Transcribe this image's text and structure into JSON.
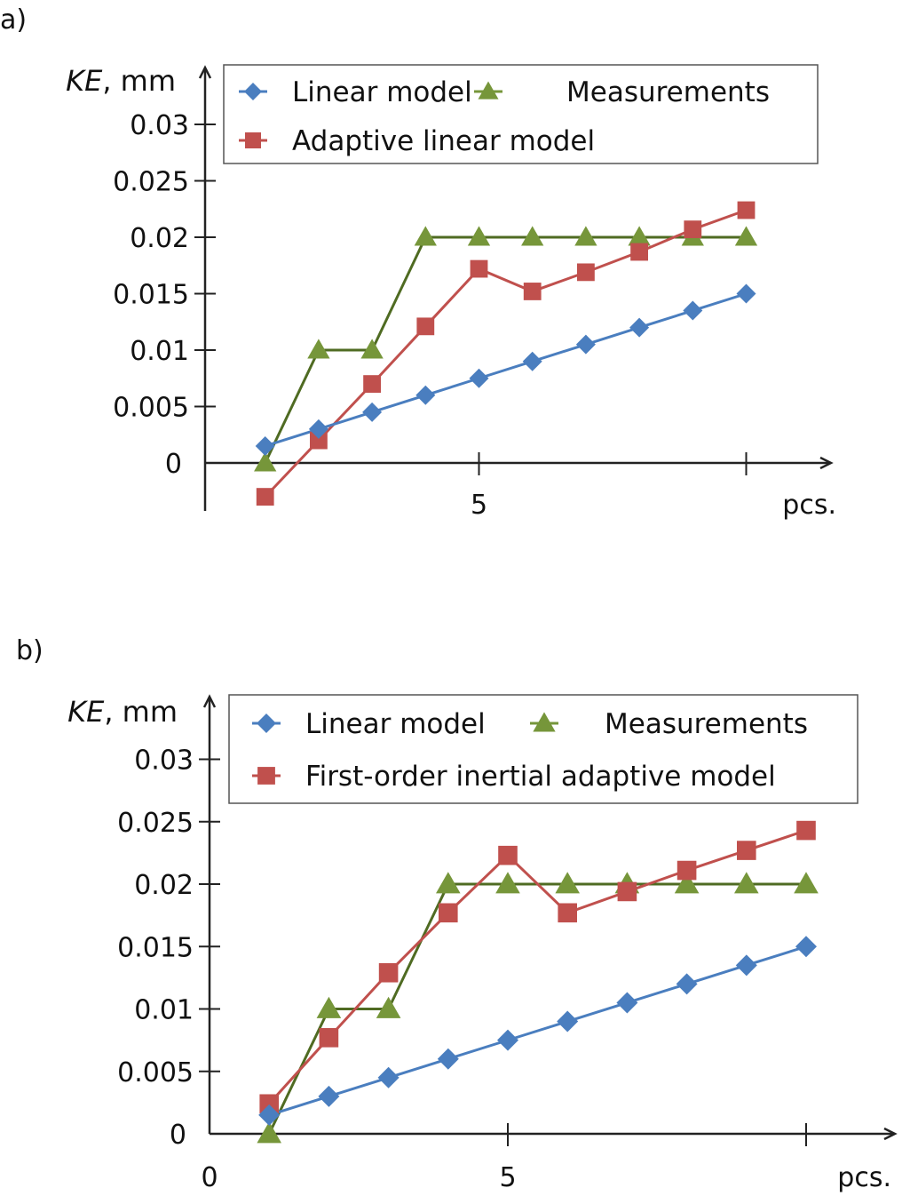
{
  "chart_data": [
    {
      "panel_label": "a)",
      "type": "line",
      "title": "",
      "xlabel": "pcs.",
      "ylabel_italic": "KE",
      "ylabel_unit": ", mm",
      "xlim": [
        0,
        11
      ],
      "ylim": [
        -0.005,
        0.033
      ],
      "x_ticks": [
        {
          "value": 5,
          "label": "5"
        },
        {
          "value": 10,
          "label": ""
        }
      ],
      "y_ticks": [
        {
          "value": 0,
          "label": "0"
        },
        {
          "value": 0.005,
          "label": "0.005"
        },
        {
          "value": 0.01,
          "label": "0.01"
        },
        {
          "value": 0.015,
          "label": "0.015"
        },
        {
          "value": 0.02,
          "label": "0.02"
        },
        {
          "value": 0.025,
          "label": "0.025"
        },
        {
          "value": 0.03,
          "label": "0.03"
        }
      ],
      "grid": false,
      "legend_position": "top",
      "x": [
        1,
        2,
        3,
        4,
        5,
        6,
        7,
        8,
        9,
        10
      ],
      "series": [
        {
          "name": "Linear model",
          "marker": "diamond",
          "color": "#4a7ebf",
          "line_color": "#4a7ebf",
          "values": [
            0.0015,
            0.003,
            0.0045,
            0.006,
            0.0075,
            0.009,
            0.0105,
            0.012,
            0.0135,
            0.015
          ]
        },
        {
          "name": "Measurements",
          "marker": "triangle",
          "color": "#76963a",
          "line_color": "#4f6b22",
          "values": [
            0,
            0.01,
            0.01,
            0.02,
            0.02,
            0.02,
            0.02,
            0.02,
            0.02,
            0.02
          ]
        },
        {
          "name": "Adaptive linear model",
          "marker": "square",
          "color": "#c0504d",
          "line_color": "#c0504d",
          "values": [
            -0.003,
            0.002,
            0.007,
            0.0121,
            0.0172,
            0.0152,
            0.0169,
            0.0187,
            0.0207,
            0.0224
          ]
        }
      ],
      "legend_order": [
        [
          0,
          1
        ],
        [
          2
        ]
      ]
    },
    {
      "panel_label": "b)",
      "type": "line",
      "title": "",
      "xlabel": "pcs.",
      "ylabel_italic": "KE",
      "ylabel_unit": ", mm",
      "xlim": [
        0,
        11
      ],
      "ylim": [
        0,
        0.033
      ],
      "x_ticks": [
        {
          "value": 0,
          "label": "0"
        },
        {
          "value": 5,
          "label": "5"
        },
        {
          "value": 10,
          "label": ""
        }
      ],
      "y_ticks": [
        {
          "value": 0,
          "label": "0"
        },
        {
          "value": 0.005,
          "label": "0.005"
        },
        {
          "value": 0.01,
          "label": "0.01"
        },
        {
          "value": 0.015,
          "label": "0.015"
        },
        {
          "value": 0.02,
          "label": "0.02"
        },
        {
          "value": 0.025,
          "label": "0.025"
        },
        {
          "value": 0.03,
          "label": "0.03"
        }
      ],
      "grid": false,
      "legend_position": "top",
      "x": [
        1,
        2,
        3,
        4,
        5,
        6,
        7,
        8,
        9,
        10
      ],
      "series": [
        {
          "name": "Linear model",
          "marker": "diamond",
          "color": "#4a7ebf",
          "line_color": "#4a7ebf",
          "values": [
            0.0015,
            0.003,
            0.0045,
            0.006,
            0.0075,
            0.009,
            0.0105,
            0.012,
            0.0135,
            0.015
          ]
        },
        {
          "name": "Measurements",
          "marker": "triangle",
          "color": "#76963a",
          "line_color": "#4f6b22",
          "values": [
            0,
            0.01,
            0.01,
            0.02,
            0.02,
            0.02,
            0.02,
            0.02,
            0.02,
            0.02
          ]
        },
        {
          "name": "First-order inertial adaptive model",
          "marker": "square",
          "color": "#c0504d",
          "line_color": "#c0504d",
          "values": [
            0.0024,
            0.0077,
            0.0129,
            0.0177,
            0.0223,
            0.0177,
            0.0194,
            0.0211,
            0.0227,
            0.0243
          ]
        }
      ],
      "legend_order": [
        [
          0,
          1
        ],
        [
          2
        ]
      ]
    }
  ]
}
